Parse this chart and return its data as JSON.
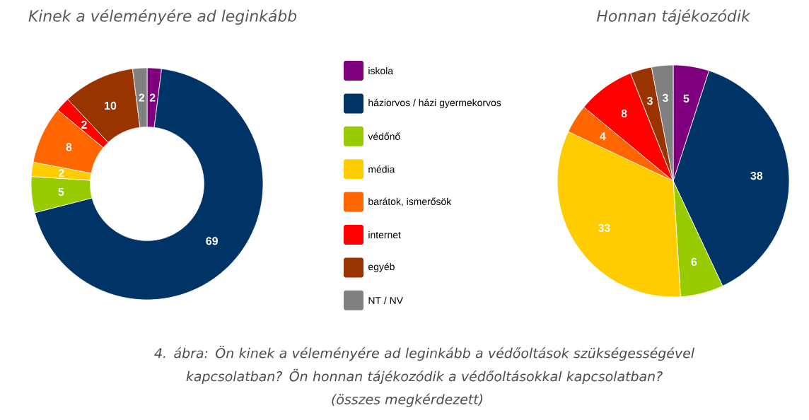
{
  "chart_data": [
    {
      "type": "donut",
      "title": "Kinek a véleményére ad leginkább",
      "categories": [
        "iskola",
        "háziorvos / házi gyermekorvos",
        "védőnő",
        "média",
        "barátok, ismerősök",
        "internet",
        "egyéb",
        "NT / NV"
      ],
      "values": [
        2,
        69,
        5,
        2,
        8,
        2,
        10,
        2
      ],
      "colors": [
        "#7f007f",
        "#003366",
        "#99cc00",
        "#ffcc00",
        "#ff6600",
        "#ff0000",
        "#993300",
        "#808080"
      ],
      "data_labels": true,
      "legend": "right",
      "annotations": [
        "4. ábra: Ön kinek a véleményére ad leginkább a védőoltások szükségességével kapcsolatban? Ön honnan tájékozódik a védőoltásokkal kapcsolatban?",
        "(összes megkérdezett)"
      ]
    },
    {
      "type": "pie",
      "title": "Honnan tájékozódik",
      "values": [
        5,
        38,
        6,
        33,
        4,
        8,
        3,
        3
      ],
      "colors": [
        "#7f007f",
        "#003366",
        "#99cc00",
        "#ffcc00",
        "#ff6600",
        "#ff0000",
        "#993300",
        "#808080"
      ],
      "data_labels": true
    }
  ]
}
